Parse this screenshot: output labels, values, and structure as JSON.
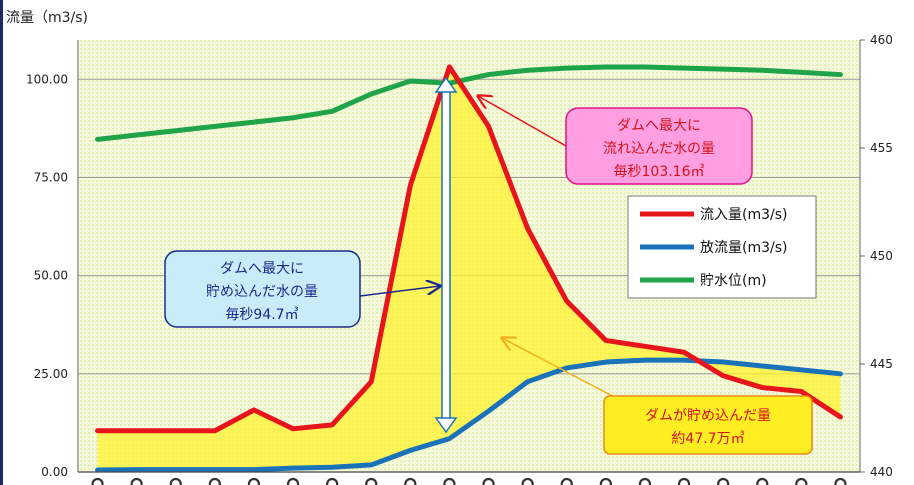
{
  "chart_data": {
    "type": "line",
    "ylabel": "流量（m3/s)",
    "x_count": 20,
    "y_left": {
      "range": [
        0,
        110
      ],
      "ticks": [
        "0.00",
        "25.00",
        "50.00",
        "75.00",
        "100.00"
      ],
      "tick_values": [
        0,
        25,
        50,
        75,
        100
      ]
    },
    "y_right": {
      "range": [
        440,
        460
      ],
      "ticks": [
        "440",
        "445",
        "450",
        "455",
        "460"
      ],
      "tick_values": [
        440,
        445,
        450,
        455,
        460
      ]
    },
    "grid": true,
    "legend_placement": "right",
    "series": [
      {
        "name": "流入量(m3/s)",
        "axis": "left",
        "color": "#e8141b",
        "values": [
          10.5,
          10.5,
          10.5,
          10.5,
          15.8,
          11,
          12,
          23,
          73,
          103.16,
          88,
          62,
          43.5,
          33.5,
          32,
          30.5,
          24.5,
          21.5,
          20.5,
          14
        ]
      },
      {
        "name": "放流量(m3/s)",
        "axis": "left",
        "color": "#1a73b8",
        "values": [
          0.5,
          0.6,
          0.6,
          0.6,
          0.6,
          1,
          1.2,
          1.8,
          5.5,
          8.5,
          15.5,
          23,
          26.5,
          28,
          28.5,
          28.5,
          28,
          27,
          26,
          25
        ]
      },
      {
        "name": "貯水位(m)",
        "axis": "right",
        "color": "#1fa44a",
        "values": [
          455.4,
          455.6,
          455.8,
          456,
          456.2,
          456.4,
          456.7,
          457.5,
          458.1,
          458.0,
          458.4,
          458.6,
          458.7,
          458.75,
          458.75,
          458.7,
          458.65,
          458.6,
          458.5,
          458.4
        ]
      }
    ],
    "annotations": {
      "peak_inflow": {
        "lines": [
          "ダムへ最大に",
          "流れ込んだ水の量",
          "毎秒103.16㎥"
        ]
      },
      "max_storage_rate": {
        "lines": [
          "ダムへ最大に",
          "貯め込んだ水の量",
          "毎秒94.7㎥"
        ]
      },
      "total_storage": {
        "lines": [
          "ダムが貯め込んだ量",
          "約47.7万㎥"
        ]
      }
    }
  },
  "colors": {
    "plot_bg": "#f3f8d2",
    "fill_area": "#fff22c",
    "callout_pink_bg": "#ff9ee0",
    "callout_pink_border": "#e1148b",
    "callout_pink_text": "#d4141b",
    "callout_blue_bg": "#c8ecf8",
    "callout_blue_border": "#1a2a8c",
    "callout_yellow_bg": "#ffee22",
    "callout_yellow_border": "#e88a10",
    "callout_yellow_text": "#d4141b"
  }
}
